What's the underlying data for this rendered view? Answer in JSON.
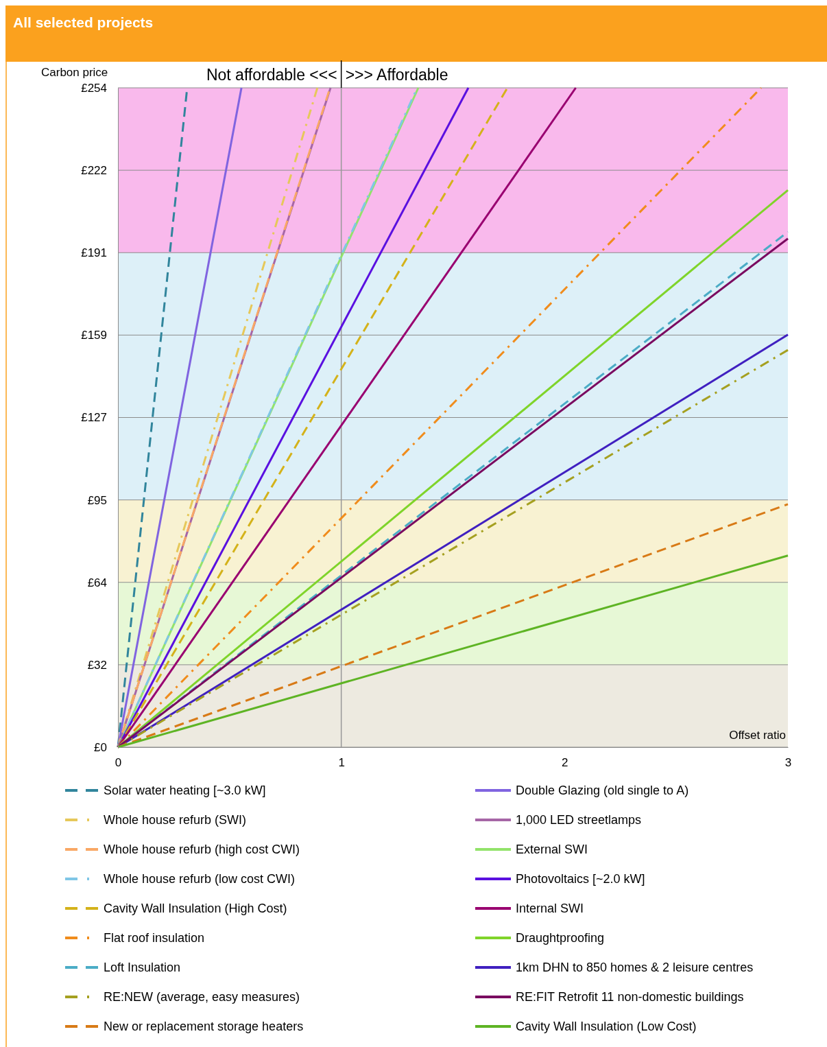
{
  "chart_data": {
    "type": "line",
    "title": "All selected projects",
    "xlabel": "Offset ratio",
    "ylabel": "Carbon price",
    "annotations": [
      "Not affordable <<<",
      ">>> Affordable"
    ],
    "xlim": [
      0,
      3
    ],
    "xticks": [
      0,
      1,
      2,
      3
    ],
    "ylim": [
      0,
      254
    ],
    "yticks": [
      {
        "value": 0,
        "label": "£0"
      },
      {
        "value": 31.75,
        "label": "£32"
      },
      {
        "value": 63.5,
        "label": "£64"
      },
      {
        "value": 95.25,
        "label": "£95"
      },
      {
        "value": 127,
        "label": "£127"
      },
      {
        "value": 158.75,
        "label": "£159"
      },
      {
        "value": 190.5,
        "label": "£191"
      },
      {
        "value": 222.25,
        "label": "£222"
      },
      {
        "value": 254,
        "label": "£254"
      }
    ],
    "grid": "y",
    "legend": "bottom",
    "marker": "none",
    "bands": [
      {
        "axis": "y",
        "from": 0,
        "to": 31.75,
        "color": "#edeae0"
      },
      {
        "axis": "y",
        "from": 31.75,
        "to": 63.5,
        "color": "#e7f8d6"
      },
      {
        "axis": "y",
        "from": 63.5,
        "to": 95.25,
        "color": "#f8f2d2"
      },
      {
        "axis": "y",
        "from": 95.25,
        "to": 190.5,
        "color": "#ddf0f8"
      },
      {
        "axis": "y",
        "from": 190.5,
        "to": 254,
        "color": "#f9b9ec"
      }
    ],
    "ref_lines": [
      {
        "axis": "x",
        "value": 1,
        "color": "#999999"
      }
    ],
    "series": [
      {
        "name": "Solar water heating [~3.0 kW]",
        "color": "#31859c",
        "line_style": "dashed",
        "x": [
          0,
          0.31
        ],
        "values": [
          0,
          254
        ]
      },
      {
        "name": "Double Glazing (old single to A)",
        "color": "#8064e0",
        "line_style": "solid",
        "x": [
          0,
          0.553
        ],
        "values": [
          0,
          254
        ]
      },
      {
        "name": "Whole house refurb (SWI)",
        "color": "#e6c85a",
        "line_style": "dashdot",
        "x": [
          0,
          0.893
        ],
        "values": [
          0,
          254
        ]
      },
      {
        "name": "1,000 LED streetlamps",
        "color": "#a666a6",
        "line_style": "solid",
        "x": [
          0,
          0.952
        ],
        "values": [
          0,
          254
        ]
      },
      {
        "name": "Whole house refurb (high cost CWI)",
        "color": "#f9a865",
        "line_style": "dashed",
        "x": [
          0,
          0.95
        ],
        "values": [
          0,
          254
        ]
      },
      {
        "name": "External SWI",
        "color": "#92e36a",
        "line_style": "solid",
        "x": [
          0,
          1.345
        ],
        "values": [
          0,
          254
        ]
      },
      {
        "name": "Whole house refurb (low cost CWI)",
        "color": "#7fc6e6",
        "line_style": "dashdot",
        "x": [
          0,
          1.34
        ],
        "values": [
          0,
          254
        ]
      },
      {
        "name": "Photovoltaics [~2.0 kW]",
        "color": "#5a10e0",
        "line_style": "solid",
        "x": [
          0,
          1.569
        ],
        "values": [
          0,
          254
        ]
      },
      {
        "name": "Cavity Wall Insulation (High Cost)",
        "color": "#d4b21a",
        "line_style": "dashed",
        "x": [
          0,
          1.744
        ],
        "values": [
          0,
          254
        ]
      },
      {
        "name": "Internal SWI",
        "color": "#990070",
        "line_style": "solid",
        "x": [
          0,
          2.05
        ],
        "values": [
          0,
          254
        ]
      },
      {
        "name": "Flat roof insulation",
        "color": "#f08c1c",
        "line_style": "dashdot",
        "x": [
          0,
          2.88
        ],
        "values": [
          0,
          254
        ]
      },
      {
        "name": "Draughtproofing",
        "color": "#7fd42a",
        "line_style": "solid",
        "x": [
          0,
          3
        ],
        "values": [
          0,
          214.6
        ]
      },
      {
        "name": "Loft Insulation",
        "color": "#4bacc6",
        "line_style": "dashed",
        "x": [
          0,
          3
        ],
        "values": [
          0,
          198.5
        ]
      },
      {
        "name": "1km DHN to 850 homes & 2 leisure centres",
        "color": "#4020c0",
        "line_style": "solid",
        "x": [
          0,
          3
        ],
        "values": [
          0,
          158.9
        ]
      },
      {
        "name": "RE:NEW (average, easy measures)",
        "color": "#a5a020",
        "line_style": "dashdot",
        "x": [
          0,
          3
        ],
        "values": [
          0,
          153
        ]
      },
      {
        "name": "RE:FIT Retrofit 11 non-domestic buildings",
        "color": "#7a0a60",
        "line_style": "solid",
        "x": [
          0,
          3
        ],
        "values": [
          0,
          195.9
        ]
      },
      {
        "name": "New or replacement storage heaters",
        "color": "#d87a16",
        "line_style": "dashed",
        "x": [
          0,
          3
        ],
        "values": [
          0,
          93.6
        ]
      },
      {
        "name": "Cavity Wall Insulation (Low Cost)",
        "color": "#5eb424",
        "line_style": "solid",
        "x": [
          0,
          3
        ],
        "values": [
          0,
          73.8
        ]
      }
    ]
  }
}
